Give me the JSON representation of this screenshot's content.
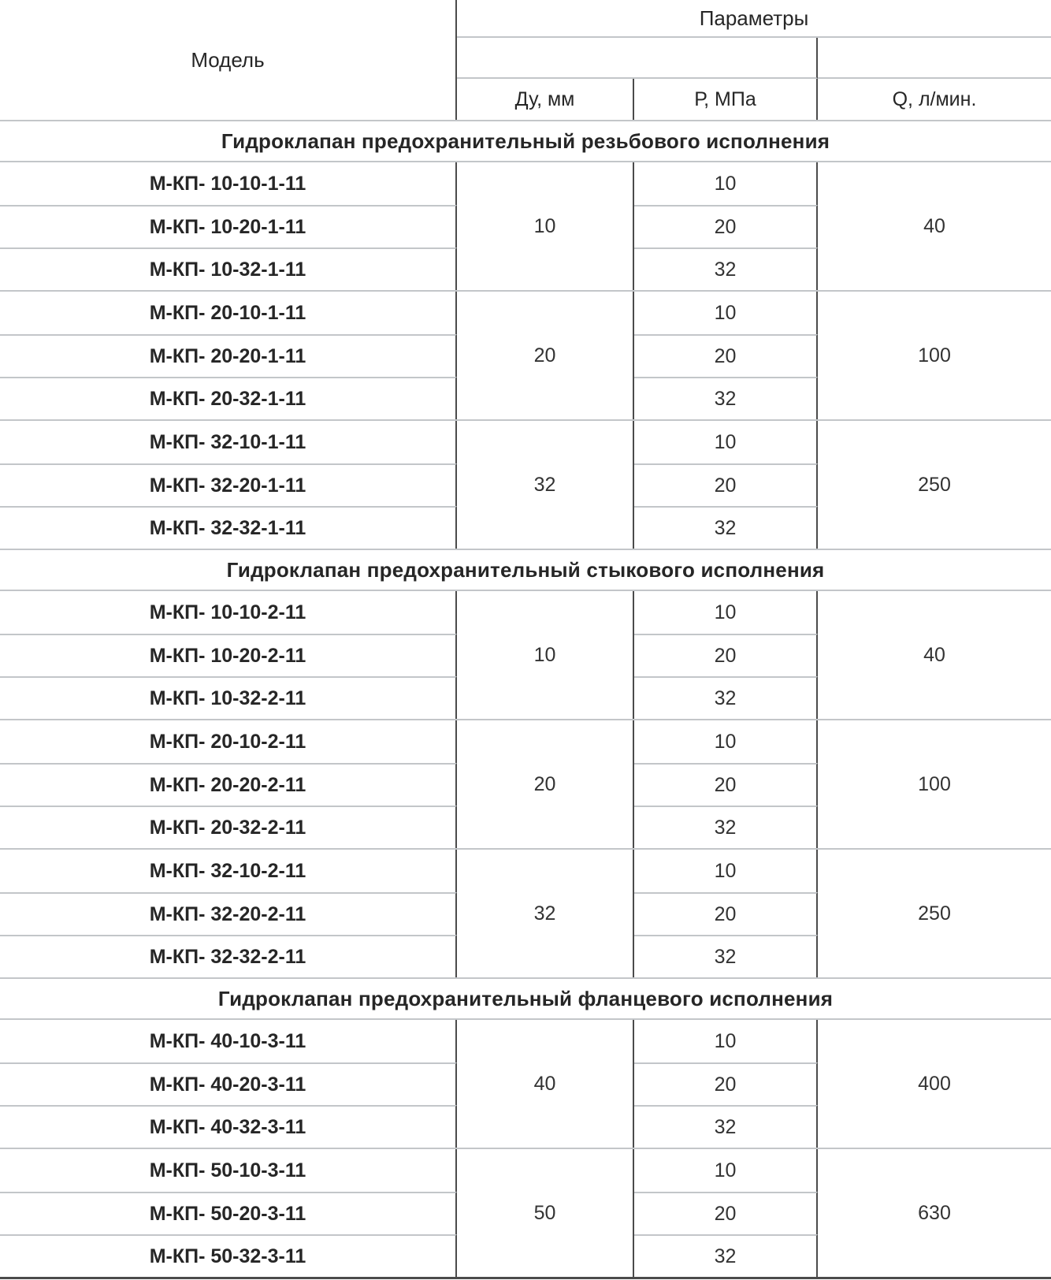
{
  "header": {
    "model_label": "Модель",
    "params_label": "Параметры",
    "columns": {
      "du": "Ду, мм",
      "p": "Р, МПа",
      "q": "Q, л/мин."
    }
  },
  "sections": [
    {
      "title": "Гидроклапан предохранительный резьбового исполнения",
      "groups": [
        {
          "models": [
            "М-КП- 10-10-1-11",
            "М-КП- 10-20-1-11",
            "М-КП- 10-32-1-11"
          ],
          "du": "10",
          "p": [
            "10",
            "20",
            "32"
          ],
          "q": "40"
        },
        {
          "models": [
            "М-КП- 20-10-1-11",
            "М-КП- 20-20-1-11",
            "М-КП- 20-32-1-11"
          ],
          "du": "20",
          "p": [
            "10",
            "20",
            "32"
          ],
          "q": "100"
        },
        {
          "models": [
            "М-КП- 32-10-1-11",
            "М-КП- 32-20-1-11",
            "М-КП- 32-32-1-11"
          ],
          "du": "32",
          "p": [
            "10",
            "20",
            "32"
          ],
          "q": "250"
        }
      ]
    },
    {
      "title": "Гидроклапан предохранительный стыкового исполнения",
      "groups": [
        {
          "models": [
            "М-КП- 10-10-2-11",
            "М-КП- 10-20-2-11",
            "М-КП- 10-32-2-11"
          ],
          "du": "10",
          "p": [
            "10",
            "20",
            "32"
          ],
          "q": "40"
        },
        {
          "models": [
            "М-КП- 20-10-2-11",
            "М-КП- 20-20-2-11",
            "М-КП- 20-32-2-11"
          ],
          "du": "20",
          "p": [
            "10",
            "20",
            "32"
          ],
          "q": "100"
        },
        {
          "models": [
            "М-КП- 32-10-2-11",
            "М-КП- 32-20-2-11",
            "М-КП- 32-32-2-11"
          ],
          "du": "32",
          "p": [
            "10",
            "20",
            "32"
          ],
          "q": "250"
        }
      ]
    },
    {
      "title": "Гидроклапан предохранительный фланцевого исполнения",
      "groups": [
        {
          "models": [
            "М-КП- 40-10-3-11",
            "М-КП- 40-20-3-11",
            "М-КП- 40-32-3-11"
          ],
          "du": "40",
          "p": [
            "10",
            "20",
            "32"
          ],
          "q": "400"
        },
        {
          "models": [
            "М-КП- 50-10-3-11",
            "М-КП- 50-20-3-11",
            "М-КП- 50-32-3-11"
          ],
          "du": "50",
          "p": [
            "10",
            "20",
            "32"
          ],
          "q": "630"
        }
      ]
    }
  ]
}
